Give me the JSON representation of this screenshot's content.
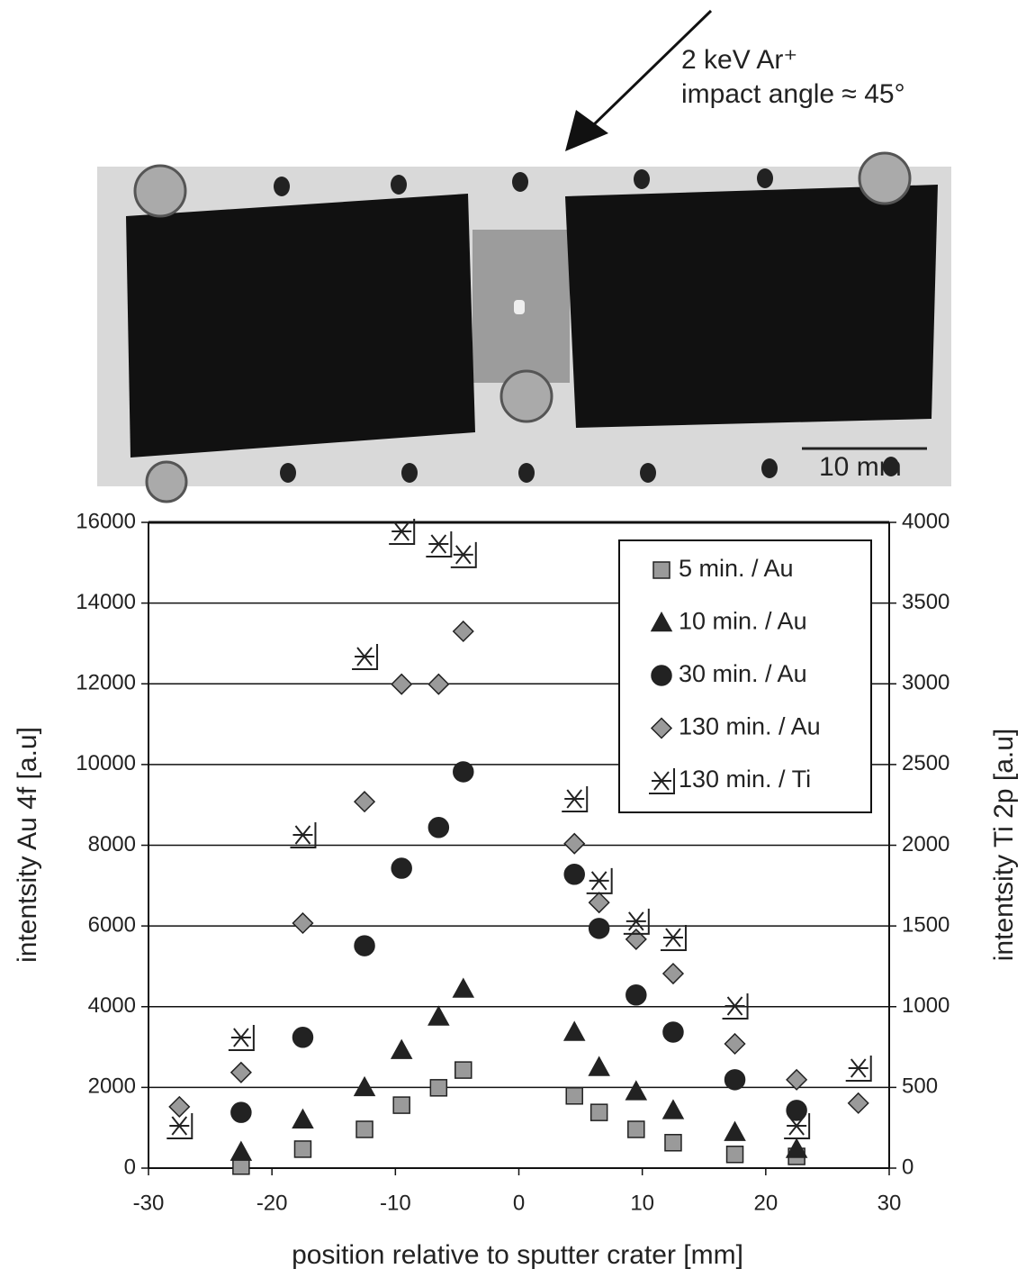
{
  "chart_data": {
    "type": "scatter",
    "annotations": [
      "2 keV Ar⁺",
      "impact angle ≈ 45°",
      "10 mm"
    ],
    "xlabel": "position relative to sputter crater [mm]",
    "ylabel": "intentsity Au 4f [a.u]",
    "y2label": "intentsity Ti 2p [a.u]",
    "x": [
      -27.5,
      -22.5,
      -17.5,
      -12.5,
      -9.5,
      -6.5,
      -4.5,
      4.5,
      6.5,
      9.5,
      12.5,
      17.5,
      22.5,
      27.5
    ],
    "xlim": [
      -30,
      30
    ],
    "xticks": [
      -30,
      -20,
      -10,
      0,
      10,
      20,
      30
    ],
    "ylim": [
      0,
      16000
    ],
    "yticks": [
      0,
      2000,
      4000,
      6000,
      8000,
      10000,
      12000,
      14000,
      16000
    ],
    "y2lim": [
      0,
      4000
    ],
    "y2ticks": [
      0,
      500,
      1000,
      1500,
      2000,
      2500,
      3000,
      3500,
      4000
    ],
    "grid": true,
    "legend": "upper right",
    "series": [
      {
        "name": "5 min. / Au",
        "marker": "square",
        "color": "#9a9a9a",
        "values": [
          null,
          50,
          470,
          960,
          1560,
          1990,
          2430,
          1790,
          1380,
          960,
          630,
          340,
          290,
          null
        ]
      },
      {
        "name": "10 min. / Au",
        "marker": "triangle",
        "color": "#222222",
        "values": [
          null,
          400,
          1200,
          2000,
          2920,
          3750,
          4440,
          3370,
          2500,
          1900,
          1430,
          890,
          470,
          null
        ]
      },
      {
        "name": "30 min. / Au",
        "marker": "circle",
        "color": "#222222",
        "values": [
          null,
          1380,
          3240,
          5510,
          7430,
          8440,
          9820,
          7280,
          5940,
          4290,
          3370,
          2190,
          1430,
          null
        ]
      },
      {
        "name": "130 min. / Au",
        "marker": "diamond",
        "color": "#9a9a9a",
        "values": [
          1520,
          2370,
          6070,
          9080,
          11990,
          11990,
          13300,
          8040,
          6580,
          5670,
          4820,
          3080,
          2190,
          1610
        ]
      },
      {
        "name": "130 min. / Ti",
        "marker": "asterisk",
        "color": "#222222",
        "axis": "y2",
        "values": [
          262,
          809,
          2064,
          3169,
          3944,
          3866,
          3800,
          2287,
          1780,
          1529,
          1428,
          1004,
          262,
          619
        ]
      }
    ]
  }
}
